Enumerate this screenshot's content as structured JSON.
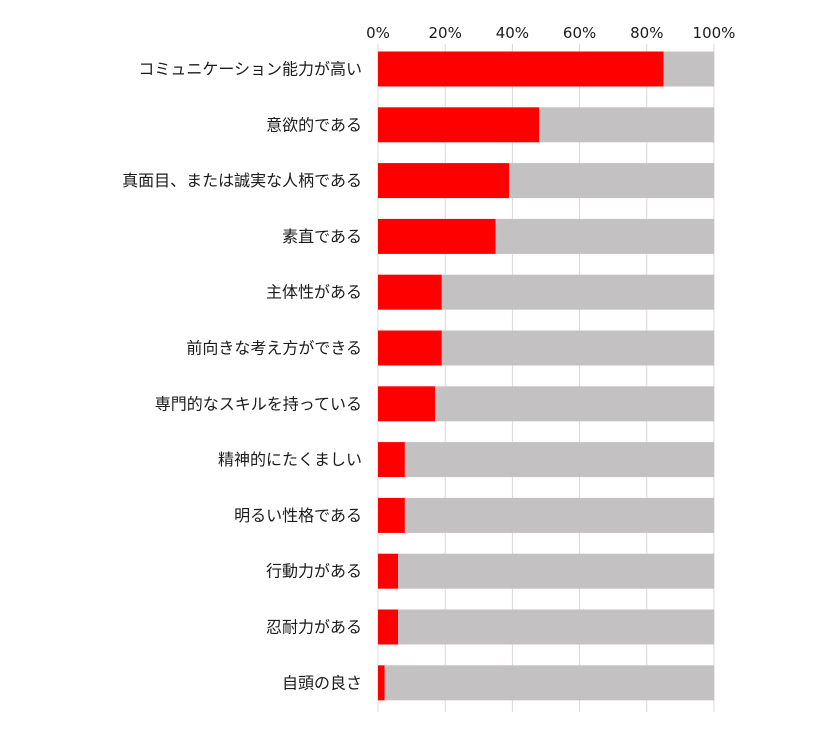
{
  "chart_data": {
    "type": "bar",
    "orientation": "horizontal",
    "stacked": true,
    "categories": [
      "コミュニケーション能力が高い",
      "意欲的である",
      "真面目、または誠実な人柄である",
      "素直である",
      "主体性がある",
      "前向きな考え方ができる",
      "専門的なスキルを持っている",
      "精神的にたくましい",
      "明るい性格である",
      "行動力がある",
      "忍耐力がある",
      "自頭の良さ"
    ],
    "series": [
      {
        "values": [
          85,
          48,
          39,
          35,
          19,
          19,
          17,
          8,
          8,
          6,
          6,
          2
        ],
        "color": "#ff0000"
      },
      {
        "values": [
          15,
          52,
          61,
          65,
          81,
          81,
          83,
          92,
          92,
          94,
          94,
          98
        ],
        "color": "#c3c1c2"
      }
    ],
    "xlim": [
      0,
      100
    ],
    "xticks": [
      0,
      20,
      40,
      60,
      80,
      100
    ],
    "xtick_labels": [
      "0%",
      "20%",
      "40%",
      "60%",
      "80%",
      "100%"
    ],
    "axis_position": "top",
    "grid": true,
    "legend": "none",
    "title": "",
    "xlabel": "",
    "ylabel": ""
  }
}
